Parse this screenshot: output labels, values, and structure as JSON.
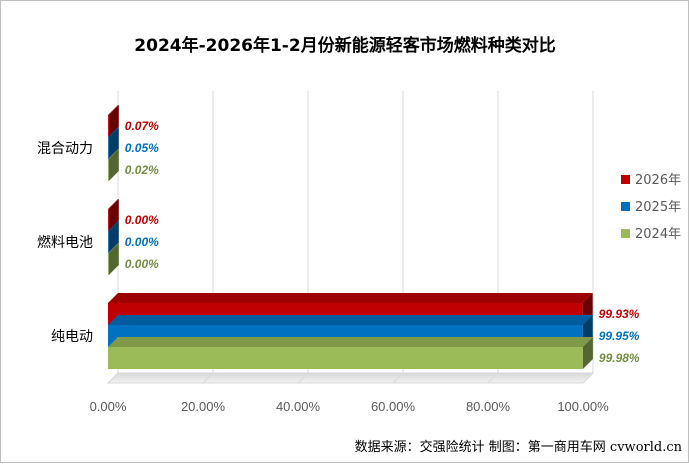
{
  "chart_data": {
    "type": "bar",
    "orientation": "horizontal",
    "title": "2024年-2026年1-2月份新能源轻客市场燃料种类对比",
    "categories": [
      "混合动力",
      "燃料电池",
      "纯电动"
    ],
    "series": [
      {
        "name": "2026年",
        "color": "#c00000",
        "values": [
          0.07,
          0.0,
          99.93
        ],
        "labels": [
          "0.07%",
          "0.00%",
          "99.93%"
        ]
      },
      {
        "name": "2025年",
        "color": "#0070c0",
        "values": [
          0.05,
          0.0,
          99.95
        ],
        "labels": [
          "0.05%",
          "0.00%",
          "99.95%"
        ]
      },
      {
        "name": "2024年",
        "color": "#9bbb59",
        "values": [
          0.02,
          0.0,
          99.98
        ],
        "labels": [
          "0.02%",
          "0.00%",
          "99.98%"
        ]
      }
    ],
    "xlim": [
      0,
      100
    ],
    "x_ticks": [
      "0.00%",
      "20.00%",
      "40.00%",
      "60.00%",
      "80.00%",
      "100.00%"
    ],
    "grid": true,
    "legend_position": "right"
  },
  "source_text": "数据来源：交强险统计 制图：第一商用车网 cvworld.cn"
}
